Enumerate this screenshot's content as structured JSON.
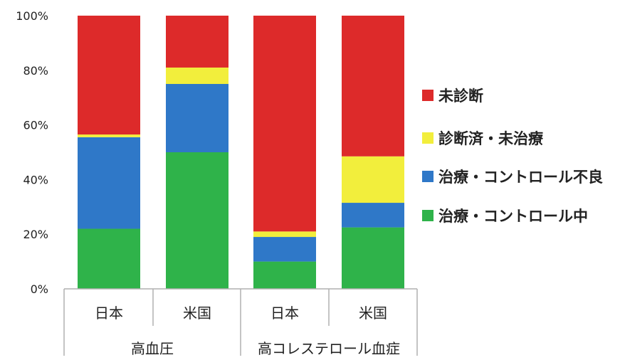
{
  "chart_data": {
    "type": "bar",
    "stacked": true,
    "percent": true,
    "title": "",
    "xlabel": "",
    "ylabel": "",
    "ylim": [
      0,
      100
    ],
    "yticks": [
      "0%",
      "20%",
      "40%",
      "60%",
      "80%",
      "100%"
    ],
    "groups": [
      {
        "label": "高血圧",
        "categories": [
          "日本",
          "米国"
        ]
      },
      {
        "label": "高コレステロール血症",
        "categories": [
          "日本",
          "米国"
        ]
      }
    ],
    "categories": [
      "日本",
      "米国",
      "日本",
      "米国"
    ],
    "series": [
      {
        "name": "治療・コントロール中",
        "color": "#2fb34a",
        "values": [
          22,
          50,
          10,
          22.5
        ]
      },
      {
        "name": "治療・コントロール不良",
        "color": "#2f78c8",
        "values": [
          33.5,
          25,
          9,
          9
        ]
      },
      {
        "name": "診断済・未治療",
        "color": "#f2ee3c",
        "values": [
          1,
          6,
          2,
          17
        ]
      },
      {
        "name": "未診断",
        "color": "#dd2a2a",
        "values": [
          43.5,
          19,
          79,
          51.5
        ]
      }
    ],
    "legend": {
      "position": "right",
      "order": [
        "未診断",
        "診断済・未治療",
        "治療・コントロール不良",
        "治療・コントロール中"
      ]
    },
    "grid": false
  }
}
